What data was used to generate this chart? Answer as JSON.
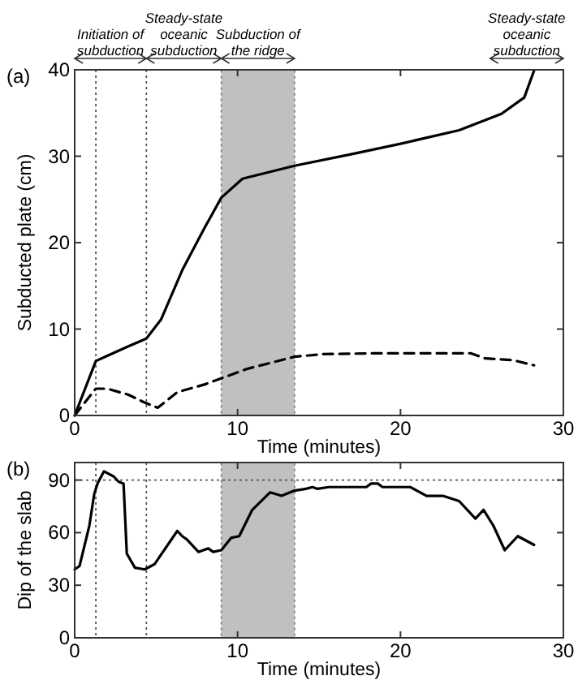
{
  "chart_data": [
    {
      "type": "line",
      "title": "(a)",
      "xlabel": "Time (minutes)",
      "ylabel": "Subducted plate (cm)",
      "xlim": [
        0,
        30
      ],
      "ylim": [
        0,
        40
      ],
      "xticks": [
        0,
        10,
        20,
        30
      ],
      "yticks": [
        0,
        10,
        20,
        30,
        40
      ],
      "grid": false,
      "series": [
        {
          "color": "#000000",
          "line_style": "solid",
          "x": [
            0,
            1.3,
            2,
            3.3,
            4.4,
            5.3,
            6.6,
            8,
            9,
            10.3,
            13.5,
            16.9,
            19.9,
            23.6,
            26.2,
            27.6,
            28.2
          ],
          "values": [
            0,
            6.3,
            6.9,
            8,
            8.9,
            11.1,
            16.8,
            21.8,
            25.2,
            27.4,
            28.9,
            30.2,
            31.4,
            33,
            34.9,
            36.8,
            39.9
          ]
        },
        {
          "color": "#000000",
          "line_style": "dashed",
          "x": [
            0,
            1,
            1.3,
            2,
            3.3,
            4.4,
            5.1,
            6.3,
            8,
            9,
            10.6,
            13.5,
            15.3,
            18.6,
            24.3,
            25.2,
            26.9,
            28.2
          ],
          "values": [
            0,
            2.4,
            3.1,
            3.1,
            2.4,
            1.4,
            0.9,
            2.7,
            3.6,
            4.3,
            5.4,
            6.8,
            7.1,
            7.2,
            7.2,
            6.6,
            6.4,
            5.8
          ]
        }
      ],
      "ref_lines": [
        {
          "axis": "x",
          "value": 1.3,
          "line_style": "dotted",
          "color": "#555555"
        },
        {
          "axis": "x",
          "value": 4.4,
          "line_style": "dotted",
          "color": "#555555"
        }
      ],
      "bands": [
        {
          "axis": "x",
          "from": 9,
          "to": 13.5,
          "color": "#c0c0c0"
        }
      ],
      "annotations": [
        "Initiation of subduction",
        "Steady-state oceanic subduction",
        "Subduction of the ridge",
        "Steady-state oceanic subduction"
      ]
    },
    {
      "type": "line",
      "title": "(b)",
      "xlabel": "Time (minutes)",
      "ylabel": "Dip of the slab",
      "xlim": [
        0,
        30
      ],
      "ylim": [
        0,
        100
      ],
      "xticks": [
        0,
        10,
        20,
        30
      ],
      "yticks": [
        0,
        30,
        60,
        90
      ],
      "grid": false,
      "series": [
        {
          "color": "#000000",
          "line_style": "solid",
          "x": [
            0,
            0.3,
            0.9,
            1.2,
            1.4,
            1.8,
            2.4,
            2.7,
            3,
            3.2,
            3.7,
            4.3,
            4.9,
            6.3,
            6.6,
            6.9,
            7.6,
            8.2,
            8.5,
            9,
            9.6,
            10.1,
            10.9,
            12,
            12.7,
            13.5,
            14.2,
            14.6,
            14.9,
            15.6,
            17.9,
            18.2,
            18.6,
            18.9,
            20.6,
            21.6,
            22.6,
            23.6,
            24.6,
            25.1,
            25.7,
            26.4,
            27.2,
            28.2
          ],
          "values": [
            39,
            41,
            64,
            82,
            88,
            95,
            92,
            89,
            88,
            48,
            40,
            39,
            42,
            61,
            58,
            56,
            49,
            51,
            49,
            50,
            57,
            58,
            73,
            83,
            81,
            84,
            85,
            86,
            85,
            86,
            86,
            88,
            88,
            86,
            86,
            81,
            81,
            78,
            68,
            73,
            64,
            50,
            58,
            53
          ]
        }
      ],
      "ref_lines": [
        {
          "axis": "x",
          "value": 1.3,
          "line_style": "dotted",
          "color": "#555555"
        },
        {
          "axis": "x",
          "value": 4.4,
          "line_style": "dotted",
          "color": "#555555"
        },
        {
          "axis": "y",
          "value": 90,
          "line_style": "dotted",
          "color": "#555555"
        }
      ],
      "bands": [
        {
          "axis": "x",
          "from": 9,
          "to": 13.5,
          "color": "#c0c0c0"
        }
      ]
    }
  ]
}
